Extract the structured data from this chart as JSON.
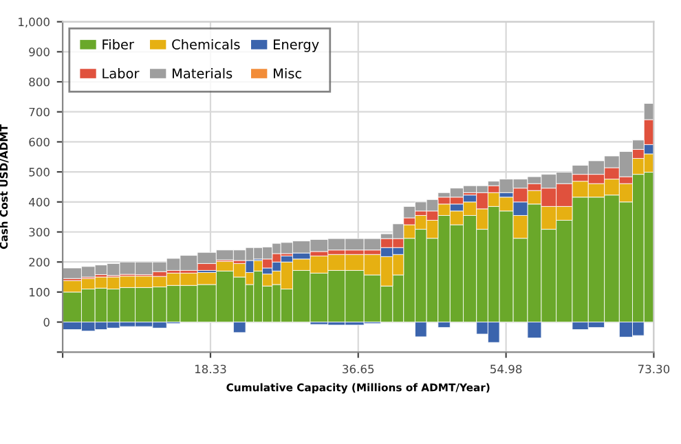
{
  "chart_data": {
    "type": "bar",
    "stacked": true,
    "xlabel": "Cumulative Capacity (Millions of ADMT/Year)",
    "ylabel": "Cash Cost USD/ADMT",
    "x": [
      1.37,
      3.3,
      4.73,
      6.29,
      7.86,
      10.13,
      12.18,
      13.61,
      15.54,
      17.88,
      20.21,
      22.15,
      23.23,
      24.14,
      25.42,
      26.56,
      27.55,
      29.49,
      31.91,
      33.89,
      36.16,
      38.58,
      40.29,
      41.57,
      42.99,
      44.42,
      45.84,
      47.26,
      48.83,
      50.54,
      52.1,
      53.38,
      54.95,
      56.8,
      58.5,
      60.21,
      62.2,
      64.19,
      66.18,
      68.18,
      69.88,
      71.45,
      72.73
    ],
    "series": [
      {
        "name": "Fiber",
        "color": "#6aa82a",
        "values": [
          100,
          110,
          113,
          110,
          115,
          115,
          117,
          122,
          122,
          125,
          170,
          150,
          125,
          170,
          120,
          125,
          110,
          172,
          163,
          172,
          172,
          157,
          120,
          157,
          279,
          309,
          279,
          355,
          324,
          355,
          309,
          385,
          370,
          279,
          393,
          309,
          339,
          416,
          416,
          423,
          400,
          492,
          499
        ]
      },
      {
        "name": "Chemicals",
        "color": "#e6b012",
        "values": [
          38,
          35,
          37,
          40,
          38,
          38,
          35,
          41,
          41,
          40,
          32,
          45,
          40,
          35,
          40,
          45,
          90,
          38,
          57,
          53,
          53,
          68,
          98,
          68,
          45,
          46,
          60,
          38,
          46,
          45,
          68,
          46,
          46,
          76,
          45,
          76,
          46,
          53,
          45,
          53,
          61,
          53,
          61
        ]
      },
      {
        "name": "Energy",
        "color": "#3b64ad",
        "values": [
          -25,
          -30,
          -25,
          -20,
          -15,
          -15,
          -20,
          -5,
          null,
          7,
          null,
          -35,
          40,
          5,
          20,
          30,
          20,
          20,
          -8,
          -10,
          -10,
          -5,
          30,
          23,
          null,
          -49,
          null,
          -18,
          23,
          23,
          -40,
          -68,
          15,
          45,
          -53,
          null,
          null,
          -25,
          -18,
          null,
          -50,
          -45,
          31
        ]
      },
      {
        "name": "Labor",
        "color": "#e0513d",
        "values": [
          7,
          5,
          8,
          5,
          6,
          5,
          16,
          9,
          9,
          23,
          5,
          10,
          null,
          null,
          30,
          28,
          8,
          null,
          15,
          15,
          15,
          15,
          30,
          30,
          23,
          15,
          31,
          23,
          23,
          8,
          54,
          23,
          null,
          46,
          23,
          61,
          76,
          23,
          31,
          38,
          23,
          30,
          83
        ]
      },
      {
        "name": "Materials",
        "color": "#9e9e9e",
        "values": [
          35,
          35,
          32,
          40,
          41,
          42,
          32,
          40,
          50,
          37,
          33,
          35,
          43,
          38,
          40,
          34,
          37,
          40,
          40,
          38,
          38,
          38,
          16,
          49,
          38,
          30,
          38,
          15,
          30,
          23,
          23,
          15,
          45,
          30,
          23,
          46,
          38,
          30,
          45,
          39,
          84,
          31,
          54
        ]
      },
      {
        "name": "Misc",
        "color": "#f28c38",
        "values": [
          null,
          null,
          null,
          null,
          null,
          null,
          null,
          null,
          null,
          null,
          null,
          null,
          null,
          null,
          null,
          null,
          null,
          null,
          null,
          null,
          null,
          null,
          null,
          null,
          null,
          null,
          null,
          null,
          null,
          null,
          null,
          null,
          null,
          null,
          null,
          null,
          null,
          null,
          null,
          null,
          null,
          null,
          null
        ]
      }
    ],
    "xlim": [
      0,
      73.3
    ],
    "xticks": [
      {
        "value": 0,
        "label": null
      },
      18.33,
      36.65,
      54.98,
      {
        "value": 73.3,
        "label": "73.30"
      }
    ],
    "ylim": [
      -100,
      1000
    ],
    "yticks": [
      {
        "value": -100,
        "label": null
      },
      0,
      100,
      200,
      300,
      400,
      500,
      600,
      700,
      800,
      900,
      {
        "value": 1000,
        "label": "1,000"
      }
    ],
    "grid": true,
    "legend": "top left"
  }
}
